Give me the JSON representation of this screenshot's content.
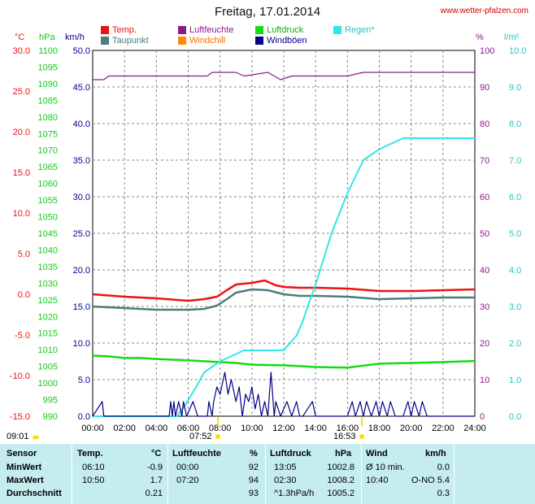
{
  "header": {
    "title": "Freitag, 17.01.2014",
    "website": "www.wetter-pfalzen.com"
  },
  "legend": [
    {
      "label": "Temp.",
      "color": "#ee1111"
    },
    {
      "label": "Taupunkt",
      "color": "#4b7d7d"
    },
    {
      "label": "Luftfeuchte",
      "color": "#8a1a8a"
    },
    {
      "label": "Windchill",
      "color": "#ff8800"
    },
    {
      "label": "Luftdruck",
      "color": "#11dd11"
    },
    {
      "label": "Windböen",
      "color": "#000088"
    },
    {
      "label": "Regen*",
      "color": "#33e5e5"
    }
  ],
  "axis_units": {
    "temp": "°C",
    "pressure": "hPa",
    "wind": "km/h",
    "humidity": "%",
    "rain": "l/m²"
  },
  "markers": {
    "sunrise": "09:01",
    "min_time": "07:52",
    "sunset": "16:53"
  },
  "chart_data": {
    "type": "line",
    "title": "Freitag, 17.01.2014",
    "x_ticks": [
      "00:00",
      "02:00",
      "04:00",
      "06:00",
      "08:00",
      "10:00",
      "12:00",
      "14:00",
      "16:00",
      "18:00",
      "20:00",
      "22:00",
      "24:00"
    ],
    "axes": {
      "temp": {
        "unit": "°C",
        "range": [
          -15,
          30
        ],
        "ticks": [
          "30.0",
          "25.0",
          "20.0",
          "15.0",
          "10.0",
          "5.0",
          "0.0",
          "-5.0",
          "-10.0",
          "-15.0"
        ]
      },
      "pressure": {
        "unit": "hPa",
        "range": [
          990,
          1100
        ],
        "ticks": [
          "1100",
          "1095",
          "1090",
          "1085",
          "1080",
          "1075",
          "1070",
          "1065",
          "1060",
          "1055",
          "1050",
          "1045",
          "1040",
          "1035",
          "1030",
          "1025",
          "1020",
          "1015",
          "1010",
          "1005",
          "1000",
          "995",
          "990"
        ]
      },
      "wind": {
        "unit": "km/h",
        "range": [
          0,
          50
        ],
        "ticks": [
          "50.0",
          "45.0",
          "40.0",
          "35.0",
          "30.0",
          "25.0",
          "20.0",
          "15.0",
          "10.0",
          "5.0",
          "0.0"
        ]
      },
      "humidity": {
        "unit": "%",
        "range": [
          0,
          100
        ],
        "ticks": [
          "100",
          "90",
          "80",
          "70",
          "60",
          "50",
          "40",
          "30",
          "20",
          "10",
          "0"
        ]
      },
      "rain": {
        "unit": "l/m²",
        "range": [
          0,
          10
        ],
        "ticks": [
          "10.0",
          "9.0",
          "8.0",
          "7.0",
          "6.0",
          "5.0",
          "4.0",
          "3.0",
          "2.0",
          "1.0",
          "0.0"
        ]
      }
    },
    "series": [
      {
        "name": "Temp.",
        "axis": "temp",
        "color": "#ee1111",
        "x": [
          0,
          2,
          4,
          6,
          7,
          7.8,
          8.5,
          9,
          10,
          10.8,
          11.5,
          12,
          13,
          14,
          16,
          18,
          20,
          22,
          24
        ],
        "y": [
          0.0,
          -0.3,
          -0.5,
          -0.8,
          -0.6,
          -0.3,
          0.6,
          1.2,
          1.4,
          1.7,
          1.1,
          0.9,
          0.8,
          0.8,
          0.7,
          0.4,
          0.4,
          0.5,
          0.6
        ]
      },
      {
        "name": "Taupunkt",
        "axis": "temp",
        "color": "#4b7d7d",
        "x": [
          0,
          2,
          4,
          6,
          7,
          7.8,
          8.5,
          9,
          10,
          11,
          12,
          13,
          14,
          16,
          18,
          20,
          22,
          24
        ],
        "y": [
          -1.5,
          -1.7,
          -1.9,
          -1.9,
          -1.8,
          -1.4,
          -0.5,
          0.2,
          0.6,
          0.5,
          0.0,
          -0.2,
          -0.2,
          -0.3,
          -0.6,
          -0.5,
          -0.4,
          -0.4
        ]
      },
      {
        "name": "Luftfeuchte",
        "axis": "humidity",
        "color": "#8a1a8a",
        "x": [
          0,
          0.7,
          1,
          7.2,
          7.5,
          9,
          9.5,
          11,
          11.4,
          11.8,
          12.5,
          16,
          17,
          24
        ],
        "y": [
          92,
          92,
          93,
          93,
          94,
          94,
          93,
          94,
          93,
          92,
          93,
          93,
          94,
          94
        ]
      },
      {
        "name": "Luftdruck",
        "axis": "pressure",
        "color": "#11dd11",
        "x": [
          0,
          1,
          2,
          3,
          4,
          6,
          7.5,
          9,
          10,
          12,
          14,
          16,
          17,
          18,
          20,
          22,
          24
        ],
        "y": [
          1008.2,
          1008.0,
          1007.5,
          1007.5,
          1007.2,
          1006.8,
          1006.4,
          1006.0,
          1005.5,
          1005.3,
          1004.8,
          1004.6,
          1005.2,
          1005.8,
          1006.0,
          1006.3,
          1006.6
        ]
      },
      {
        "name": "Regen*",
        "axis": "rain",
        "color": "#33e5e5",
        "x": [
          0,
          5.3,
          5.8,
          6.5,
          7,
          8,
          9,
          9.5,
          10,
          11,
          12,
          12.8,
          13.2,
          13.5,
          14,
          15,
          16,
          17,
          18,
          19,
          19.5,
          20,
          21,
          24
        ],
        "y": [
          0,
          0,
          0.3,
          0.8,
          1.2,
          1.5,
          1.7,
          1.8,
          1.8,
          1.8,
          1.8,
          2.2,
          2.6,
          3.0,
          3.6,
          5.0,
          6.1,
          7.0,
          7.3,
          7.5,
          7.6,
          7.6,
          7.6,
          7.6
        ]
      },
      {
        "name": "Windböen",
        "axis": "wind",
        "color": "#000088",
        "x": [
          0,
          0.6,
          0.7,
          0.8,
          4.8,
          4.9,
          5.0,
          5.1,
          5.2,
          5.4,
          5.6,
          5.7,
          5.9,
          6.3,
          6.6,
          7.2,
          7.3,
          7.5,
          7.6,
          7.8,
          8,
          8.3,
          8.5,
          8.7,
          9,
          9.2,
          9.4,
          9.6,
          9.8,
          10,
          10.2,
          10.4,
          10.6,
          10.8,
          11,
          11.2,
          11.4,
          11.5,
          11.8,
          12.2,
          12.5,
          12.8,
          13,
          13.2,
          13.8,
          14,
          16,
          16.3,
          16.5,
          16.8,
          17,
          17.2,
          17.5,
          17.8,
          18,
          18.2,
          18.5,
          18.7,
          19,
          19.5,
          19.8,
          20,
          20.2,
          20.5,
          20.7,
          21,
          24
        ],
        "y": [
          0,
          2,
          0,
          0,
          0,
          2,
          0,
          2,
          0,
          2,
          0,
          2,
          0,
          2,
          0,
          0,
          2,
          0,
          2,
          4,
          3,
          6,
          3,
          5,
          2,
          4,
          0,
          3,
          2,
          4,
          1,
          3,
          0,
          2,
          0,
          6,
          0,
          2,
          0,
          2,
          0,
          2,
          0,
          0,
          2,
          0,
          0,
          2,
          0,
          2,
          0,
          2,
          0,
          2,
          0,
          2,
          0,
          2,
          0,
          0,
          2,
          0,
          2,
          0,
          2,
          0,
          0
        ]
      }
    ]
  },
  "stats": {
    "headers": {
      "sensor": "Sensor",
      "temp": "Temp.",
      "temp_unit": "°C",
      "hum": "Luftfeuchte",
      "hum_unit": "%",
      "press": "Luftdruck",
      "press_unit": "hPa",
      "wind": "Wind",
      "wind_unit": "km/h"
    },
    "rows": [
      {
        "label": "MinWert",
        "temp_time": "06:10",
        "temp": "-0.9",
        "hum_time": "00:00",
        "hum": "92",
        "press_time": "13:05",
        "press": "1002.8",
        "wind_desc": "Ø 10 min.",
        "wind_dir": "",
        "wind": "0.0"
      },
      {
        "label": "MaxWert",
        "temp_time": "10:50",
        "temp": "1.7",
        "hum_time": "07:20",
        "hum": "94",
        "press_time": "02:30",
        "press": "1008.2",
        "wind_desc": "10:40",
        "wind_dir": "O-NO",
        "wind": "5.4"
      },
      {
        "label": "Durchschnitt",
        "temp_time": "",
        "temp": "0.21",
        "hum_time": "",
        "hum": "93",
        "press_time": "^1.3hPa/h",
        "press": "1005.2",
        "wind_desc": "",
        "wind_dir": "",
        "wind": "0.3"
      }
    ]
  }
}
